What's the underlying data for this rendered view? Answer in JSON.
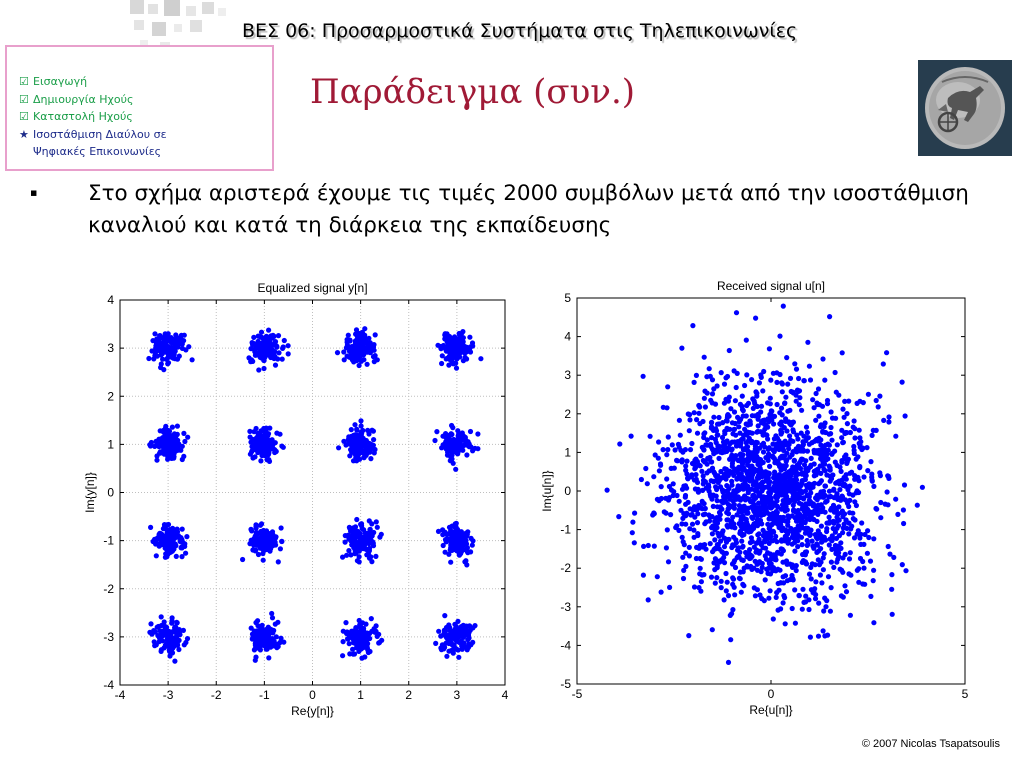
{
  "header": {
    "course_title": "ΒΕΣ 06: Προσαρμοστικά Συστήματα στις Τηλεπικοινωνίες",
    "slide_title": "Παράδειγμα (συν.)"
  },
  "nav": {
    "items": [
      {
        "mark": "☑",
        "label": "Εισαγωγή",
        "state": "done"
      },
      {
        "mark": "☑",
        "label": "Δημιουργία Ηχούς",
        "state": "done"
      },
      {
        "mark": "☑",
        "label": "Καταστολή Ηχούς",
        "state": "done"
      },
      {
        "mark": "★",
        "label": "Ισοστάθμιση Διαύλου σε",
        "state": "current"
      }
    ],
    "continuation": "Ψηφιακές Επικοινωνίες",
    "colors": {
      "done": "#1a9e48",
      "current": "#1d2b8a",
      "border": "#e8a0cc"
    }
  },
  "bullet": {
    "marker": "▪",
    "text": "Στο σχήμα αριστερά έχουμε τις τιμές 2000 συμβόλων μετά από την ισοστάθμιση καναλιού και κατά τη διάρκεια της εκπαίδευσης"
  },
  "chart_data": [
    {
      "type": "scatter",
      "title": "Equalized signal y[n]",
      "xlabel": "Re{y[n]}",
      "ylabel": "Im{y[n]}",
      "xlim": [
        -4,
        4
      ],
      "ylim": [
        -4,
        4
      ],
      "xticks": [
        -4,
        -3,
        -2,
        -1,
        0,
        1,
        2,
        3,
        4
      ],
      "yticks": [
        -4,
        -3,
        -2,
        -1,
        0,
        1,
        2,
        3,
        4
      ],
      "xtick_labels": [
        "-4",
        "-3",
        "-2",
        "-1",
        "0",
        "1",
        "2",
        "3",
        "4"
      ],
      "ytick_labels": [
        "-4",
        "-3",
        "-2",
        "-1",
        "0",
        "1",
        "2",
        "3",
        "4"
      ],
      "grid": true,
      "color": "#0000ff",
      "n_points": 2000,
      "cluster_centers": [
        [
          -3,
          3
        ],
        [
          -1,
          3
        ],
        [
          1,
          3
        ],
        [
          3,
          3
        ],
        [
          -3,
          1
        ],
        [
          -1,
          1
        ],
        [
          1,
          1
        ],
        [
          3,
          1
        ],
        [
          -3,
          -1
        ],
        [
          -1,
          -1
        ],
        [
          1,
          -1
        ],
        [
          3,
          -1
        ],
        [
          -3,
          -3
        ],
        [
          -1,
          -3
        ],
        [
          1,
          -3
        ],
        [
          3,
          -3
        ]
      ],
      "cluster_spread": 0.16
    },
    {
      "type": "scatter",
      "title": "Received signal u[n]",
      "xlabel": "Re{u[n]}",
      "ylabel": "Im{u[n]}",
      "xlim": [
        -5,
        5
      ],
      "ylim": [
        -5,
        5
      ],
      "xticks": [
        -5,
        0,
        5
      ],
      "yticks": [
        -5,
        -4,
        -3,
        -2,
        -1,
        0,
        1,
        2,
        3,
        4,
        5
      ],
      "xtick_labels": [
        "-5",
        "0",
        "5"
      ],
      "ytick_labels": [
        "-5",
        "-4",
        "-3",
        "-2",
        "-1",
        "0",
        "1",
        "2",
        "3",
        "4",
        "5"
      ],
      "grid": false,
      "color": "#0000ff",
      "n_points": 2000,
      "center": [
        0,
        0
      ],
      "spread": 1.35
    }
  ],
  "footer": {
    "copyright": "© 2007 Nicolas Tsapatsoulis"
  }
}
